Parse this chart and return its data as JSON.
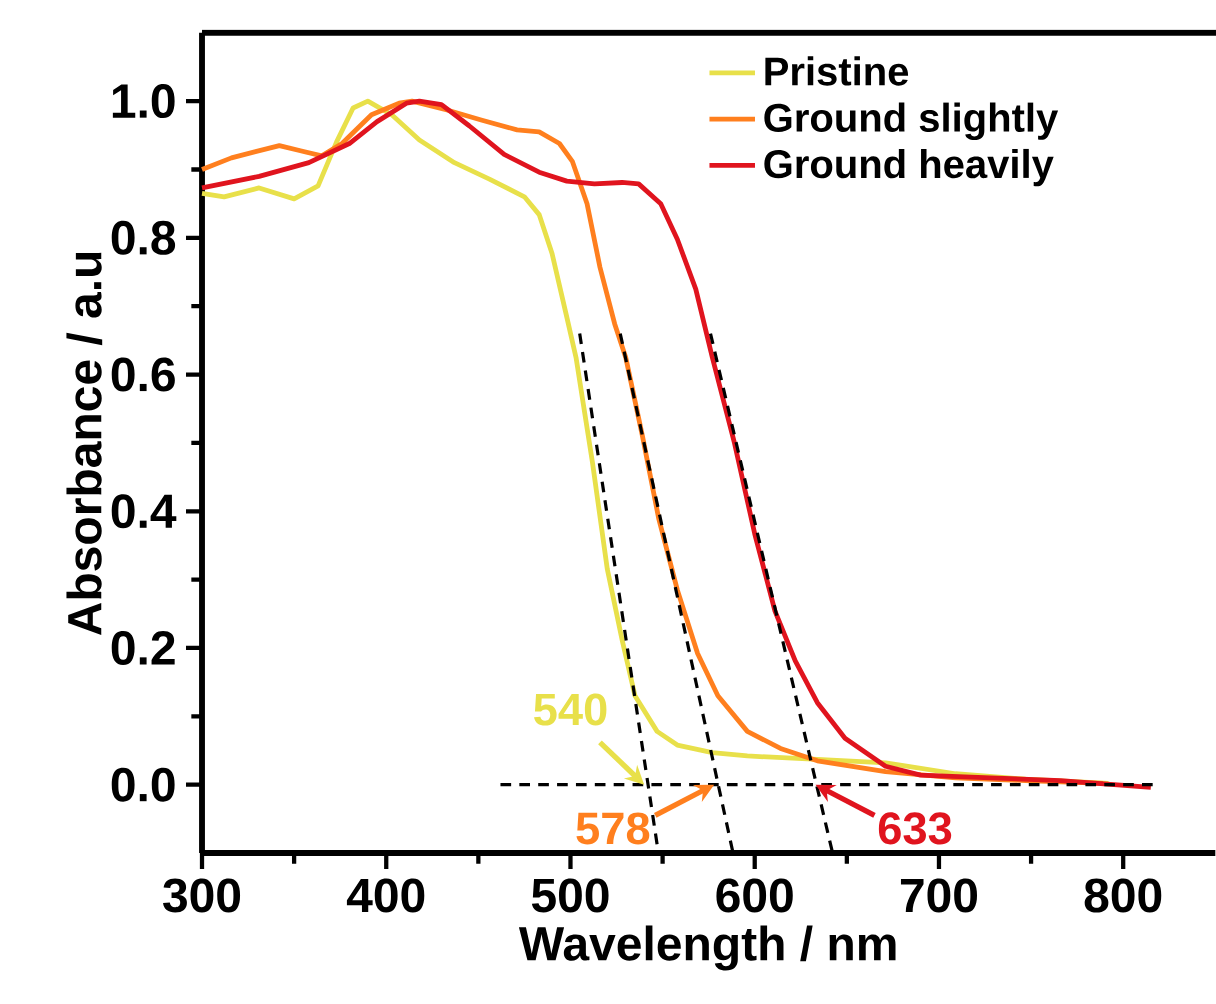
{
  "chart_data": {
    "type": "line",
    "xlabel": "Wavelength / nm",
    "ylabel": "Absorbance / a.u",
    "xlim": [
      300,
      850
    ],
    "ylim": [
      -0.1,
      1.1
    ],
    "xticks": [
      300,
      400,
      500,
      600,
      700,
      800
    ],
    "yticks": [
      {
        "value": 0,
        "label": "0.0"
      },
      {
        "value": 0.2,
        "label": "0.2"
      },
      {
        "value": 0.4,
        "label": "0.4"
      },
      {
        "value": 0.6,
        "label": "0.6"
      },
      {
        "value": 0.8,
        "label": "0.8"
      },
      {
        "value": 1.0,
        "label": "1.0"
      }
    ],
    "legend": "top right",
    "series": [
      {
        "name": "Pristine",
        "color": "#e8e04a",
        "x": [
          300,
          312,
          331,
          350,
          363,
          373,
          382,
          390,
          403,
          418,
          437,
          456,
          475,
          483,
          490,
          498,
          503,
          512,
          520,
          528,
          535,
          547,
          558,
          577,
          596,
          634,
          671,
          709,
          747,
          792
        ],
        "values": [
          0.865,
          0.86,
          0.873,
          0.857,
          0.876,
          0.94,
          0.99,
          1.0,
          0.98,
          0.943,
          0.91,
          0.886,
          0.86,
          0.834,
          0.777,
          0.684,
          0.625,
          0.47,
          0.315,
          0.212,
          0.13,
          0.078,
          0.058,
          0.047,
          0.042,
          0.037,
          0.032,
          0.016,
          0.008,
          0.002
        ]
      },
      {
        "name": "Ground slightly",
        "color": "#ff7f1e",
        "x": [
          300,
          316,
          342,
          354,
          365,
          376,
          392,
          407,
          414,
          433,
          452,
          471,
          483,
          494,
          501,
          509,
          516,
          524,
          530,
          539,
          548,
          558,
          569,
          580,
          596,
          614,
          634,
          671,
          709,
          747,
          789
        ],
        "values": [
          0.9,
          0.917,
          0.935,
          0.927,
          0.92,
          0.938,
          0.98,
          0.997,
          1.0,
          0.987,
          0.972,
          0.958,
          0.955,
          0.938,
          0.912,
          0.85,
          0.757,
          0.674,
          0.625,
          0.511,
          0.388,
          0.285,
          0.192,
          0.13,
          0.078,
          0.053,
          0.035,
          0.019,
          0.01,
          0.006,
          0.002
        ]
      },
      {
        "name": "Ground heavily",
        "color": "#e0141e",
        "x": [
          300,
          331,
          358,
          380,
          395,
          411,
          418,
          430,
          445,
          464,
          483,
          498,
          513,
          528,
          537,
          549,
          558,
          568,
          577,
          589,
          600,
          611,
          622,
          634,
          649,
          671,
          690,
          728,
          766,
          815
        ],
        "values": [
          0.873,
          0.89,
          0.91,
          0.938,
          0.97,
          0.997,
          1.0,
          0.995,
          0.964,
          0.922,
          0.896,
          0.883,
          0.879,
          0.881,
          0.879,
          0.85,
          0.798,
          0.725,
          0.625,
          0.5,
          0.367,
          0.254,
          0.181,
          0.12,
          0.068,
          0.027,
          0.014,
          0.01,
          0.006,
          -0.004
        ]
      },
      {
        "type": "line",
        "color": "#000000",
        "line_style": "dashed",
        "x": [
          505,
          547
        ],
        "values": [
          0.66,
          -0.087
        ]
      },
      {
        "type": "line",
        "color": "#000000",
        "line_style": "dashed",
        "x": [
          527,
          588
        ],
        "values": [
          0.66,
          -0.097
        ]
      },
      {
        "type": "line",
        "color": "#000000",
        "line_style": "dashed",
        "x": [
          576,
          642
        ],
        "values": [
          0.66,
          -0.097
        ]
      },
      {
        "type": "line",
        "color": "#000000",
        "line_style": "dashed",
        "x": [
          462,
          816
        ],
        "values": [
          0,
          0
        ]
      }
    ],
    "annotations": [
      {
        "text": "540",
        "x": 540,
        "y": 0
      },
      {
        "text": "578",
        "x": 578,
        "y": 0
      },
      {
        "text": "633",
        "x": 633,
        "y": 0
      }
    ]
  }
}
